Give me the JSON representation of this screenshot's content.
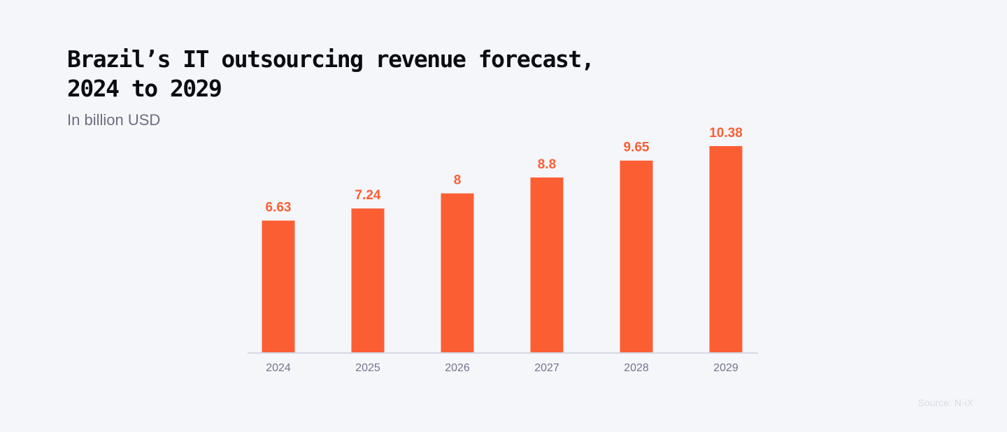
{
  "chart_data": {
    "type": "bar",
    "title_line1": "Brazil’s IT outsourcing revenue forecast,",
    "title_line2": "2024 to 2029",
    "subtitle": "In billion USD",
    "categories": [
      "2024",
      "2025",
      "2026",
      "2027",
      "2028",
      "2029"
    ],
    "values": [
      6.63,
      7.24,
      8,
      8.8,
      9.65,
      10.38
    ],
    "value_labels": [
      "6.63",
      "7.24",
      "8",
      "8.8",
      "9.65",
      "10.38"
    ],
    "ylim": [
      0,
      10.38
    ],
    "grid": false,
    "bar_color": "#FC5E34",
    "source": "Source: N-iX"
  }
}
